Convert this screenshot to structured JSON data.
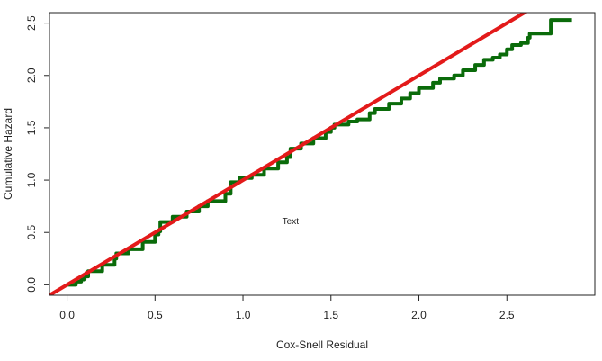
{
  "chart_data": {
    "type": "line",
    "title": "",
    "xlabel": "Cox-Snell Residual",
    "ylabel": "Cumulative Hazard",
    "xlim": [
      -0.1,
      3.0
    ],
    "ylim": [
      -0.1,
      2.6
    ],
    "x_ticks": [
      0.0,
      0.5,
      1.0,
      1.5,
      2.0,
      2.5
    ],
    "x_tick_labels": [
      "0.0",
      "0.5",
      "1.0",
      "1.5",
      "2.0",
      "2.5"
    ],
    "y_ticks": [
      0.0,
      0.5,
      1.0,
      1.5,
      2.0,
      2.5
    ],
    "y_tick_labels": [
      "0.0",
      "0.5",
      "1.0",
      "1.5",
      "2.0",
      "2.5"
    ],
    "grid": false,
    "annotation": {
      "text": "Text",
      "x": 1.27,
      "y": 0.58
    },
    "series": [
      {
        "color": "#0a6b0a",
        "step": true,
        "points": [
          [
            0.0,
            0.0
          ],
          [
            0.05,
            0.03
          ],
          [
            0.08,
            0.05
          ],
          [
            0.1,
            0.08
          ],
          [
            0.12,
            0.13
          ],
          [
            0.2,
            0.19
          ],
          [
            0.27,
            0.25
          ],
          [
            0.28,
            0.3
          ],
          [
            0.35,
            0.34
          ],
          [
            0.43,
            0.41
          ],
          [
            0.5,
            0.48
          ],
          [
            0.52,
            0.51
          ],
          [
            0.53,
            0.6
          ],
          [
            0.6,
            0.65
          ],
          [
            0.68,
            0.7
          ],
          [
            0.75,
            0.75
          ],
          [
            0.8,
            0.8
          ],
          [
            0.9,
            0.87
          ],
          [
            0.93,
            0.98
          ],
          [
            0.98,
            1.02
          ],
          [
            1.05,
            1.05
          ],
          [
            1.12,
            1.11
          ],
          [
            1.2,
            1.17
          ],
          [
            1.25,
            1.22
          ],
          [
            1.27,
            1.3
          ],
          [
            1.33,
            1.35
          ],
          [
            1.4,
            1.4
          ],
          [
            1.47,
            1.46
          ],
          [
            1.5,
            1.5
          ],
          [
            1.52,
            1.53
          ],
          [
            1.6,
            1.56
          ],
          [
            1.65,
            1.58
          ],
          [
            1.72,
            1.64
          ],
          [
            1.75,
            1.68
          ],
          [
            1.83,
            1.73
          ],
          [
            1.9,
            1.78
          ],
          [
            1.95,
            1.83
          ],
          [
            2.0,
            1.88
          ],
          [
            2.08,
            1.93
          ],
          [
            2.12,
            1.97
          ],
          [
            2.2,
            2.0
          ],
          [
            2.25,
            2.05
          ],
          [
            2.32,
            2.1
          ],
          [
            2.37,
            2.15
          ],
          [
            2.42,
            2.17
          ],
          [
            2.46,
            2.2
          ],
          [
            2.5,
            2.25
          ],
          [
            2.53,
            2.29
          ],
          [
            2.58,
            2.31
          ],
          [
            2.62,
            2.36
          ],
          [
            2.63,
            2.4
          ],
          [
            2.7,
            2.4
          ],
          [
            2.75,
            2.53
          ],
          [
            2.87,
            2.53
          ]
        ]
      },
      {
        "color": "#e31a1a",
        "points": [
          [
            -0.1,
            -0.1
          ],
          [
            2.66,
            2.66
          ]
        ]
      }
    ]
  }
}
